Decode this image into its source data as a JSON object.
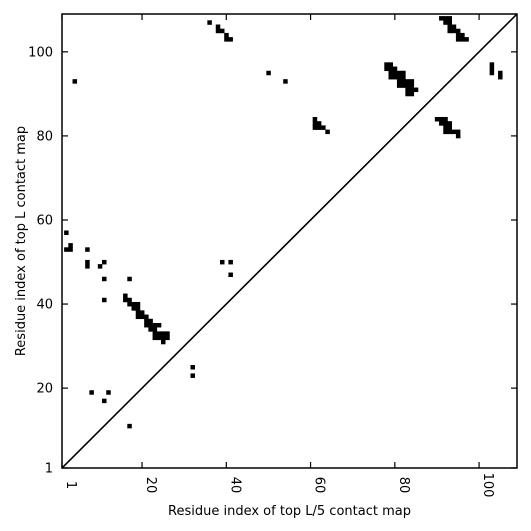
{
  "chart_data": {
    "type": "scatter",
    "title": "",
    "xlabel": "Residue index of top L/5 contact map",
    "ylabel": "Residue index of top L contact map",
    "xlim": [
      1,
      109
    ],
    "ylim": [
      1,
      109
    ],
    "x_ticks": [
      1,
      20,
      40,
      60,
      80,
      100
    ],
    "y_ticks": [
      1,
      20,
      40,
      60,
      80,
      100
    ],
    "x_tick_labels": [
      "1",
      "20",
      "40",
      "60",
      "80",
      "100"
    ],
    "y_tick_labels": [
      "1",
      "20",
      "40",
      "60",
      "80",
      "100"
    ],
    "diagonal": true,
    "grid": false,
    "marker": "square",
    "marker_color": "#000000",
    "series": [
      {
        "points": [
          [
            2,
            53
          ],
          [
            2,
            57
          ],
          [
            3,
            53
          ],
          [
            3,
            54
          ],
          [
            7,
            50
          ],
          [
            7,
            49
          ],
          [
            7,
            53
          ],
          [
            8,
            19
          ],
          [
            10,
            49
          ],
          [
            11,
            50
          ],
          [
            11,
            46
          ],
          [
            11,
            41
          ],
          [
            11,
            17
          ],
          [
            12,
            19
          ],
          [
            16,
            42
          ],
          [
            16,
            41
          ],
          [
            17,
            41
          ],
          [
            17,
            46
          ],
          [
            17,
            40
          ],
          [
            18,
            40
          ],
          [
            18,
            39
          ],
          [
            19,
            40
          ],
          [
            19,
            39
          ],
          [
            19,
            38
          ],
          [
            19,
            37
          ],
          [
            20,
            38
          ],
          [
            20,
            37
          ],
          [
            21,
            37
          ],
          [
            21,
            36
          ],
          [
            21,
            35
          ],
          [
            22,
            36
          ],
          [
            22,
            35
          ],
          [
            22,
            34
          ],
          [
            23,
            35
          ],
          [
            23,
            34
          ],
          [
            23,
            33
          ],
          [
            23,
            32
          ],
          [
            24,
            35
          ],
          [
            24,
            33
          ],
          [
            24,
            32
          ],
          [
            25,
            33
          ],
          [
            25,
            32
          ],
          [
            25,
            31
          ],
          [
            26,
            33
          ],
          [
            26,
            32
          ],
          [
            17,
            11
          ],
          [
            32,
            25
          ],
          [
            32,
            23
          ],
          [
            39,
            50
          ],
          [
            41,
            50
          ],
          [
            41,
            47
          ]
        ]
      },
      {
        "points": [
          [
            4,
            93
          ],
          [
            36,
            107
          ],
          [
            38,
            106
          ],
          [
            38,
            105
          ],
          [
            39,
            105
          ],
          [
            40,
            104
          ],
          [
            40,
            103
          ],
          [
            41,
            103
          ],
          [
            50,
            95
          ],
          [
            54,
            93
          ],
          [
            61,
            84
          ],
          [
            61,
            83
          ],
          [
            61,
            82
          ],
          [
            62,
            83
          ],
          [
            62,
            82
          ],
          [
            63,
            82
          ],
          [
            64,
            81
          ],
          [
            78,
            97
          ],
          [
            78,
            96
          ],
          [
            79,
            97
          ],
          [
            79,
            96
          ],
          [
            79,
            95
          ],
          [
            79,
            94
          ],
          [
            80,
            96
          ],
          [
            80,
            95
          ],
          [
            80,
            94
          ],
          [
            81,
            95
          ],
          [
            81,
            94
          ],
          [
            81,
            93
          ],
          [
            81,
            92
          ],
          [
            82,
            95
          ],
          [
            82,
            94
          ],
          [
            82,
            93
          ],
          [
            82,
            92
          ],
          [
            83,
            93
          ],
          [
            83,
            92
          ],
          [
            83,
            91
          ],
          [
            83,
            90
          ],
          [
            84,
            93
          ],
          [
            84,
            92
          ],
          [
            84,
            91
          ],
          [
            84,
            90
          ],
          [
            85,
            91
          ],
          [
            90,
            84
          ],
          [
            91,
            84
          ],
          [
            91,
            83
          ],
          [
            92,
            84
          ],
          [
            92,
            83
          ],
          [
            92,
            82
          ],
          [
            92,
            81
          ],
          [
            93,
            83
          ],
          [
            93,
            82
          ],
          [
            93,
            81
          ],
          [
            94,
            81
          ],
          [
            95,
            81
          ],
          [
            95,
            80
          ],
          [
            91,
            108
          ],
          [
            92,
            108
          ],
          [
            92,
            107
          ],
          [
            93,
            108
          ],
          [
            93,
            107
          ],
          [
            93,
            106
          ],
          [
            93,
            105
          ],
          [
            94,
            106
          ],
          [
            94,
            105
          ],
          [
            95,
            105
          ],
          [
            95,
            104
          ],
          [
            95,
            103
          ],
          [
            96,
            104
          ],
          [
            96,
            103
          ],
          [
            97,
            103
          ],
          [
            103,
            97
          ],
          [
            103,
            96
          ],
          [
            103,
            95
          ],
          [
            105,
            95
          ],
          [
            105,
            94
          ]
        ]
      }
    ]
  }
}
